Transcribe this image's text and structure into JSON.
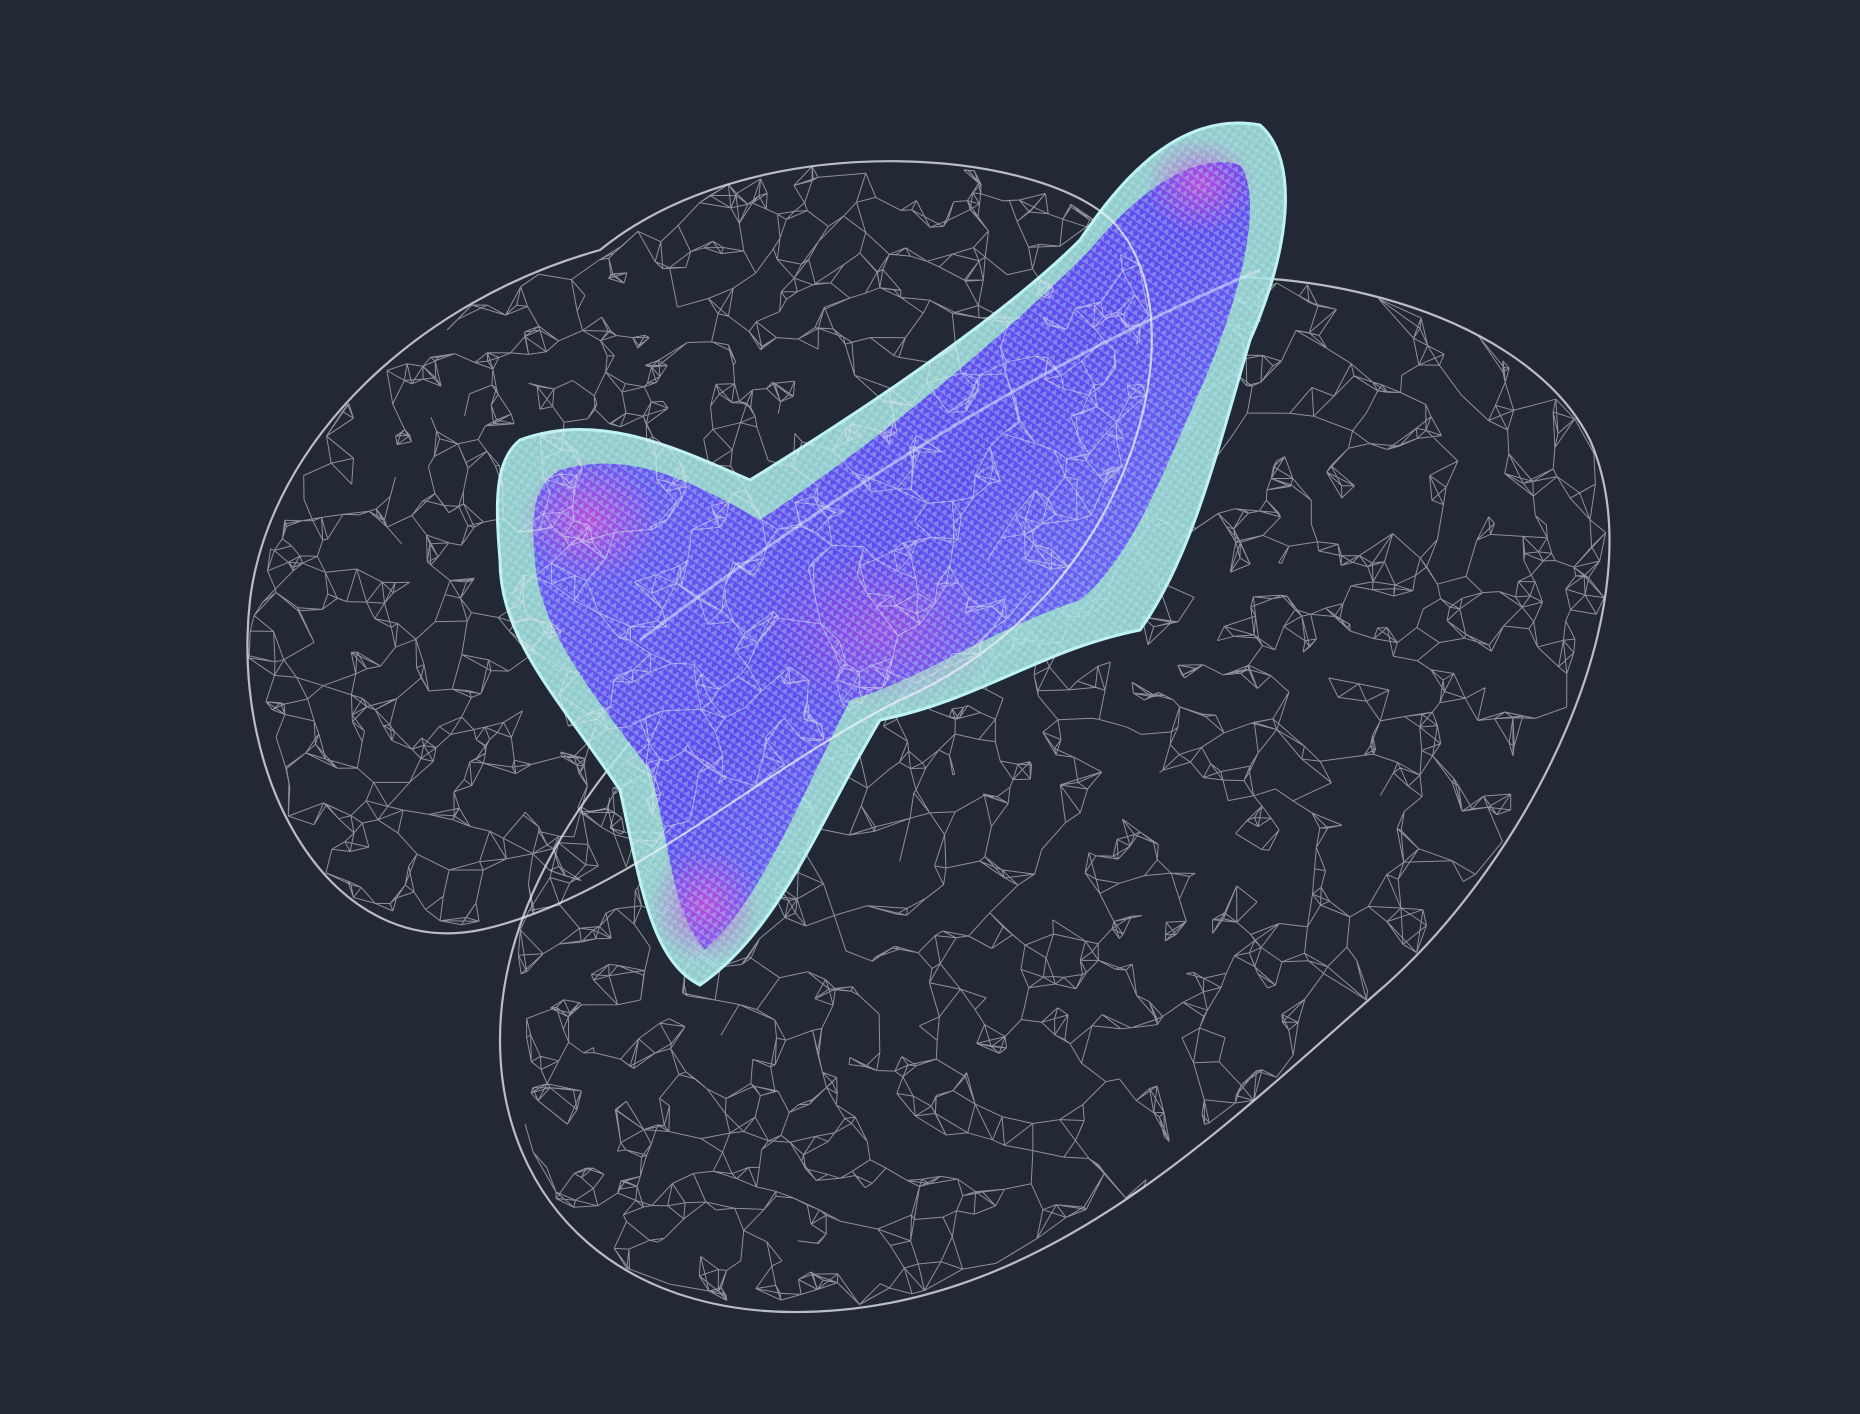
{
  "viewer": {
    "background": "#222834",
    "objects": [
      {
        "name": "outer-mesh-wireframe",
        "kind": "triangle-mesh",
        "style": "wireframe",
        "color": "#e6e8ee"
      },
      {
        "name": "inner-volume-glyphs",
        "kind": "point-glyphs",
        "style": "colormap",
        "colors": [
          "#a8e6e6",
          "#7f8cff",
          "#5a3cf0",
          "#b44ad6"
        ]
      }
    ]
  }
}
